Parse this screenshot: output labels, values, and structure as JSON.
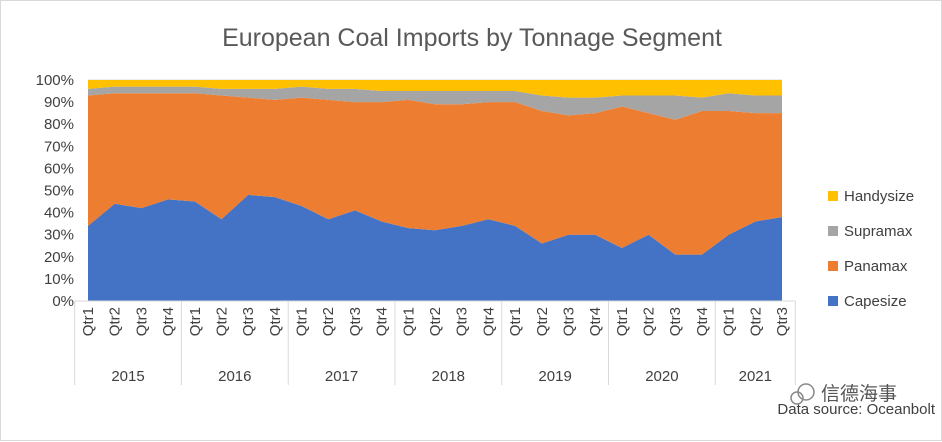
{
  "chart_data": {
    "type": "area",
    "stacked": true,
    "percent": true,
    "title": "European Coal Imports by Tonnage Segment",
    "ylim": [
      0,
      100
    ],
    "yticks": [
      "0%",
      "10%",
      "20%",
      "30%",
      "40%",
      "50%",
      "60%",
      "70%",
      "80%",
      "90%",
      "100%"
    ],
    "grid": true,
    "legend_position": "right",
    "categories": [
      "Qtr1",
      "Qtr2",
      "Qtr3",
      "Qtr4",
      "Qtr1",
      "Qtr2",
      "Qtr3",
      "Qtr4",
      "Qtr1",
      "Qtr2",
      "Qtr3",
      "Qtr4",
      "Qtr1",
      "Qtr2",
      "Qtr3",
      "Qtr4",
      "Qtr1",
      "Qtr2",
      "Qtr3",
      "Qtr4",
      "Qtr1",
      "Qtr2",
      "Qtr3",
      "Qtr4",
      "Qtr1",
      "Qtr2",
      "Qtr3"
    ],
    "groups": [
      {
        "label": "2015",
        "count": 4
      },
      {
        "label": "2016",
        "count": 4
      },
      {
        "label": "2017",
        "count": 4
      },
      {
        "label": "2018",
        "count": 4
      },
      {
        "label": "2019",
        "count": 4
      },
      {
        "label": "2020",
        "count": 4
      },
      {
        "label": "2021",
        "count": 3
      }
    ],
    "series": [
      {
        "name": "Capesize",
        "color": "#4472c4",
        "values": [
          34,
          44,
          42,
          46,
          45,
          37,
          48,
          47,
          43,
          37,
          41,
          36,
          33,
          32,
          34,
          37,
          34,
          26,
          30,
          30,
          24,
          30,
          21,
          21,
          30,
          36,
          38
        ]
      },
      {
        "name": "Panamax",
        "color": "#ed7d31",
        "values": [
          59,
          50,
          52,
          48,
          49,
          56,
          44,
          44,
          49,
          54,
          49,
          54,
          58,
          57,
          55,
          53,
          56,
          60,
          54,
          55,
          64,
          55,
          61,
          65,
          56,
          49,
          47
        ]
      },
      {
        "name": "Supramax",
        "color": "#a5a5a5",
        "values": [
          3,
          3,
          3,
          3,
          3,
          3,
          4,
          5,
          5,
          5,
          6,
          5,
          4,
          6,
          6,
          5,
          5,
          7,
          8,
          7,
          5,
          8,
          11,
          6,
          8,
          8,
          8
        ]
      },
      {
        "name": "Handysize",
        "color": "#ffc000",
        "values": [
          4,
          3,
          3,
          3,
          3,
          4,
          4,
          4,
          3,
          4,
          4,
          5,
          5,
          5,
          5,
          5,
          5,
          7,
          8,
          8,
          7,
          7,
          7,
          8,
          6,
          7,
          7
        ]
      }
    ]
  },
  "source_note": "Data source: Oceanbolt",
  "watermark": "信德海事"
}
